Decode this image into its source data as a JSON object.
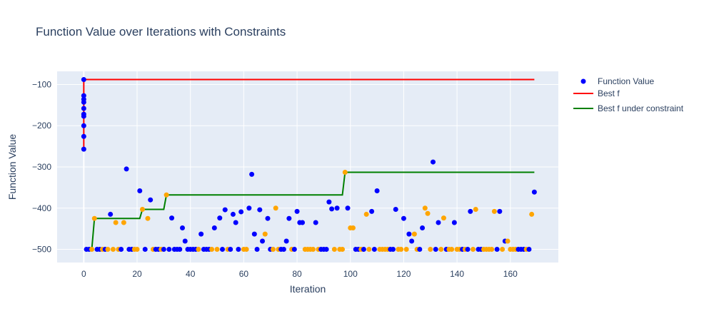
{
  "colors": {
    "plot_bg": "#e5ecf6",
    "grid": "#ffffff",
    "points_primary": "#0000ff",
    "points_secondary": "#ffa500",
    "best_f": "#ff0000",
    "best_constraint": "#008000"
  },
  "chart_data": {
    "type": "scatter",
    "title": "Function Value over Iterations with Constraints",
    "xlabel": "Iteration",
    "ylabel": "Function Value",
    "xlim": [
      -10,
      178
    ],
    "ylim": [
      -532,
      -68
    ],
    "xticks": [
      0,
      20,
      40,
      60,
      80,
      100,
      120,
      140,
      160
    ],
    "yticks": [
      -100,
      -200,
      -300,
      -400,
      -500
    ],
    "grid": true,
    "legend_position": "top-right",
    "legend": [
      "Function Value",
      "Best f",
      "Best f under constraint"
    ],
    "series": [
      {
        "name": "Function Value",
        "mode": "markers",
        "points": [
          {
            "x": 0,
            "y": -88,
            "c": "b"
          },
          {
            "x": 0,
            "y": -127,
            "c": "b"
          },
          {
            "x": 0,
            "y": -136,
            "c": "b"
          },
          {
            "x": 0,
            "y": -143,
            "c": "b"
          },
          {
            "x": 0,
            "y": -158,
            "c": "b"
          },
          {
            "x": 0,
            "y": -172,
            "c": "b"
          },
          {
            "x": 0,
            "y": -177,
            "c": "b"
          },
          {
            "x": 0,
            "y": -200,
            "c": "b"
          },
          {
            "x": 0,
            "y": -226,
            "c": "b"
          },
          {
            "x": 0,
            "y": -257,
            "c": "b"
          },
          {
            "x": 1,
            "y": -500,
            "c": "b"
          },
          {
            "x": 2,
            "y": -500,
            "c": "b"
          },
          {
            "x": 3,
            "y": -500,
            "c": "o"
          },
          {
            "x": 4,
            "y": -425,
            "c": "o"
          },
          {
            "x": 5,
            "y": -500,
            "c": "b"
          },
          {
            "x": 6,
            "y": -500,
            "c": "b"
          },
          {
            "x": 7,
            "y": -500,
            "c": "o"
          },
          {
            "x": 8,
            "y": -500,
            "c": "b"
          },
          {
            "x": 9,
            "y": -500,
            "c": "o"
          },
          {
            "x": 10,
            "y": -415,
            "c": "b"
          },
          {
            "x": 11,
            "y": -500,
            "c": "o"
          },
          {
            "x": 12,
            "y": -435,
            "c": "o"
          },
          {
            "x": 13,
            "y": -500,
            "c": "o"
          },
          {
            "x": 14,
            "y": -500,
            "c": "b"
          },
          {
            "x": 15,
            "y": -435,
            "c": "o"
          },
          {
            "x": 16,
            "y": -305,
            "c": "b"
          },
          {
            "x": 17,
            "y": -500,
            "c": "b"
          },
          {
            "x": 18,
            "y": -500,
            "c": "b"
          },
          {
            "x": 19,
            "y": -500,
            "c": "o"
          },
          {
            "x": 20,
            "y": -500,
            "c": "o"
          },
          {
            "x": 21,
            "y": -358,
            "c": "b"
          },
          {
            "x": 22,
            "y": -403,
            "c": "o"
          },
          {
            "x": 23,
            "y": -500,
            "c": "b"
          },
          {
            "x": 24,
            "y": -425,
            "c": "o"
          },
          {
            "x": 25,
            "y": -380,
            "c": "b"
          },
          {
            "x": 26,
            "y": -500,
            "c": "o"
          },
          {
            "x": 27,
            "y": -500,
            "c": "b"
          },
          {
            "x": 28,
            "y": -500,
            "c": "b"
          },
          {
            "x": 29,
            "y": -500,
            "c": "o"
          },
          {
            "x": 30,
            "y": -500,
            "c": "b"
          },
          {
            "x": 31,
            "y": -368,
            "c": "o"
          },
          {
            "x": 32,
            "y": -500,
            "c": "b"
          },
          {
            "x": 33,
            "y": -424,
            "c": "b"
          },
          {
            "x": 34,
            "y": -500,
            "c": "b"
          },
          {
            "x": 35,
            "y": -500,
            "c": "b"
          },
          {
            "x": 36,
            "y": -500,
            "c": "b"
          },
          {
            "x": 37,
            "y": -448,
            "c": "b"
          },
          {
            "x": 38,
            "y": -480,
            "c": "b"
          },
          {
            "x": 39,
            "y": -500,
            "c": "b"
          },
          {
            "x": 40,
            "y": -500,
            "c": "b"
          },
          {
            "x": 41,
            "y": -500,
            "c": "b"
          },
          {
            "x": 42,
            "y": -500,
            "c": "b"
          },
          {
            "x": 43,
            "y": -500,
            "c": "o"
          },
          {
            "x": 44,
            "y": -463,
            "c": "b"
          },
          {
            "x": 45,
            "y": -500,
            "c": "b"
          },
          {
            "x": 46,
            "y": -500,
            "c": "b"
          },
          {
            "x": 47,
            "y": -500,
            "c": "b"
          },
          {
            "x": 48,
            "y": -500,
            "c": "o"
          },
          {
            "x": 49,
            "y": -448,
            "c": "b"
          },
          {
            "x": 50,
            "y": -500,
            "c": "o"
          },
          {
            "x": 51,
            "y": -424,
            "c": "b"
          },
          {
            "x": 52,
            "y": -500,
            "c": "b"
          },
          {
            "x": 53,
            "y": -404,
            "c": "b"
          },
          {
            "x": 54,
            "y": -500,
            "c": "o"
          },
          {
            "x": 55,
            "y": -500,
            "c": "b"
          },
          {
            "x": 56,
            "y": -415,
            "c": "b"
          },
          {
            "x": 57,
            "y": -435,
            "c": "b"
          },
          {
            "x": 58,
            "y": -500,
            "c": "b"
          },
          {
            "x": 59,
            "y": -409,
            "c": "b"
          },
          {
            "x": 60,
            "y": -500,
            "c": "o"
          },
          {
            "x": 61,
            "y": -500,
            "c": "o"
          },
          {
            "x": 62,
            "y": -400,
            "c": "b"
          },
          {
            "x": 63,
            "y": -318,
            "c": "b"
          },
          {
            "x": 64,
            "y": -463,
            "c": "b"
          },
          {
            "x": 65,
            "y": -500,
            "c": "b"
          },
          {
            "x": 66,
            "y": -404,
            "c": "b"
          },
          {
            "x": 67,
            "y": -480,
            "c": "b"
          },
          {
            "x": 68,
            "y": -463,
            "c": "o"
          },
          {
            "x": 69,
            "y": -425,
            "c": "b"
          },
          {
            "x": 70,
            "y": -500,
            "c": "b"
          },
          {
            "x": 71,
            "y": -500,
            "c": "o"
          },
          {
            "x": 72,
            "y": -400,
            "c": "o"
          },
          {
            "x": 73,
            "y": -500,
            "c": "o"
          },
          {
            "x": 74,
            "y": -500,
            "c": "b"
          },
          {
            "x": 75,
            "y": -500,
            "c": "b"
          },
          {
            "x": 76,
            "y": -480,
            "c": "b"
          },
          {
            "x": 77,
            "y": -425,
            "c": "b"
          },
          {
            "x": 78,
            "y": -500,
            "c": "o"
          },
          {
            "x": 79,
            "y": -500,
            "c": "b"
          },
          {
            "x": 80,
            "y": -408,
            "c": "b"
          },
          {
            "x": 81,
            "y": -435,
            "c": "b"
          },
          {
            "x": 82,
            "y": -435,
            "c": "b"
          },
          {
            "x": 83,
            "y": -500,
            "c": "o"
          },
          {
            "x": 84,
            "y": -500,
            "c": "o"
          },
          {
            "x": 85,
            "y": -500,
            "c": "o"
          },
          {
            "x": 86,
            "y": -500,
            "c": "o"
          },
          {
            "x": 87,
            "y": -435,
            "c": "b"
          },
          {
            "x": 88,
            "y": -500,
            "c": "o"
          },
          {
            "x": 89,
            "y": -500,
            "c": "b"
          },
          {
            "x": 90,
            "y": -500,
            "c": "b"
          },
          {
            "x": 91,
            "y": -500,
            "c": "b"
          },
          {
            "x": 92,
            "y": -385,
            "c": "b"
          },
          {
            "x": 93,
            "y": -402,
            "c": "b"
          },
          {
            "x": 94,
            "y": -500,
            "c": "o"
          },
          {
            "x": 95,
            "y": -400,
            "c": "b"
          },
          {
            "x": 96,
            "y": -500,
            "c": "o"
          },
          {
            "x": 97,
            "y": -500,
            "c": "o"
          },
          {
            "x": 98,
            "y": -313,
            "c": "o"
          },
          {
            "x": 99,
            "y": -400,
            "c": "b"
          },
          {
            "x": 100,
            "y": -448,
            "c": "o"
          },
          {
            "x": 101,
            "y": -448,
            "c": "o"
          },
          {
            "x": 102,
            "y": -500,
            "c": "b"
          },
          {
            "x": 103,
            "y": -500,
            "c": "b"
          },
          {
            "x": 104,
            "y": -500,
            "c": "o"
          },
          {
            "x": 105,
            "y": -500,
            "c": "b"
          },
          {
            "x": 106,
            "y": -415,
            "c": "o"
          },
          {
            "x": 107,
            "y": -500,
            "c": "o"
          },
          {
            "x": 108,
            "y": -408,
            "c": "b"
          },
          {
            "x": 109,
            "y": -500,
            "c": "b"
          },
          {
            "x": 110,
            "y": -358,
            "c": "b"
          },
          {
            "x": 111,
            "y": -500,
            "c": "o"
          },
          {
            "x": 112,
            "y": -500,
            "c": "o"
          },
          {
            "x": 113,
            "y": -500,
            "c": "o"
          },
          {
            "x": 114,
            "y": -500,
            "c": "o"
          },
          {
            "x": 115,
            "y": -500,
            "c": "b"
          },
          {
            "x": 116,
            "y": -500,
            "c": "b"
          },
          {
            "x": 117,
            "y": -403,
            "c": "b"
          },
          {
            "x": 118,
            "y": -500,
            "c": "o"
          },
          {
            "x": 119,
            "y": -500,
            "c": "o"
          },
          {
            "x": 120,
            "y": -425,
            "c": "b"
          },
          {
            "x": 121,
            "y": -500,
            "c": "o"
          },
          {
            "x": 122,
            "y": -463,
            "c": "b"
          },
          {
            "x": 123,
            "y": -480,
            "c": "b"
          },
          {
            "x": 124,
            "y": -463,
            "c": "o"
          },
          {
            "x": 125,
            "y": -500,
            "c": "o"
          },
          {
            "x": 126,
            "y": -500,
            "c": "b"
          },
          {
            "x": 127,
            "y": -448,
            "c": "b"
          },
          {
            "x": 128,
            "y": -400,
            "c": "o"
          },
          {
            "x": 129,
            "y": -413,
            "c": "o"
          },
          {
            "x": 130,
            "y": -500,
            "c": "o"
          },
          {
            "x": 131,
            "y": -288,
            "c": "b"
          },
          {
            "x": 132,
            "y": -500,
            "c": "b"
          },
          {
            "x": 133,
            "y": -435,
            "c": "b"
          },
          {
            "x": 134,
            "y": -500,
            "c": "o"
          },
          {
            "x": 135,
            "y": -424,
            "c": "o"
          },
          {
            "x": 136,
            "y": -500,
            "c": "b"
          },
          {
            "x": 137,
            "y": -500,
            "c": "o"
          },
          {
            "x": 138,
            "y": -500,
            "c": "o"
          },
          {
            "x": 139,
            "y": -435,
            "c": "b"
          },
          {
            "x": 140,
            "y": -500,
            "c": "o"
          },
          {
            "x": 141,
            "y": -500,
            "c": "o"
          },
          {
            "x": 142,
            "y": -500,
            "c": "b"
          },
          {
            "x": 143,
            "y": -500,
            "c": "o"
          },
          {
            "x": 144,
            "y": -500,
            "c": "b"
          },
          {
            "x": 145,
            "y": -408,
            "c": "b"
          },
          {
            "x": 146,
            "y": -500,
            "c": "o"
          },
          {
            "x": 147,
            "y": -403,
            "c": "o"
          },
          {
            "x": 148,
            "y": -500,
            "c": "b"
          },
          {
            "x": 149,
            "y": -500,
            "c": "b"
          },
          {
            "x": 150,
            "y": -500,
            "c": "o"
          },
          {
            "x": 151,
            "y": -500,
            "c": "o"
          },
          {
            "x": 152,
            "y": -500,
            "c": "o"
          },
          {
            "x": 153,
            "y": -500,
            "c": "o"
          },
          {
            "x": 154,
            "y": -408,
            "c": "o"
          },
          {
            "x": 155,
            "y": -500,
            "c": "b"
          },
          {
            "x": 156,
            "y": -408,
            "c": "b"
          },
          {
            "x": 157,
            "y": -500,
            "c": "o"
          },
          {
            "x": 158,
            "y": -480,
            "c": "b"
          },
          {
            "x": 159,
            "y": -480,
            "c": "o"
          },
          {
            "x": 160,
            "y": -500,
            "c": "o"
          },
          {
            "x": 161,
            "y": -500,
            "c": "o"
          },
          {
            "x": 162,
            "y": -500,
            "c": "o"
          },
          {
            "x": 163,
            "y": -500,
            "c": "b"
          },
          {
            "x": 164,
            "y": -500,
            "c": "b"
          },
          {
            "x": 165,
            "y": -500,
            "c": "b"
          },
          {
            "x": 166,
            "y": -500,
            "c": "o"
          },
          {
            "x": 167,
            "y": -500,
            "c": "b"
          },
          {
            "x": 168,
            "y": -415,
            "c": "o"
          },
          {
            "x": 169,
            "y": -361,
            "c": "b"
          }
        ]
      },
      {
        "name": "Best f",
        "mode": "line",
        "points": [
          [
            0,
            -257
          ],
          [
            0,
            -88
          ],
          [
            169,
            -88
          ]
        ]
      },
      {
        "name": "Best f under constraint",
        "mode": "line",
        "points": [
          [
            3,
            -500
          ],
          [
            4,
            -425
          ],
          [
            21,
            -425
          ],
          [
            22,
            -403
          ],
          [
            30,
            -403
          ],
          [
            31,
            -368
          ],
          [
            97,
            -368
          ],
          [
            98,
            -313
          ],
          [
            169,
            -313
          ]
        ]
      }
    ]
  }
}
